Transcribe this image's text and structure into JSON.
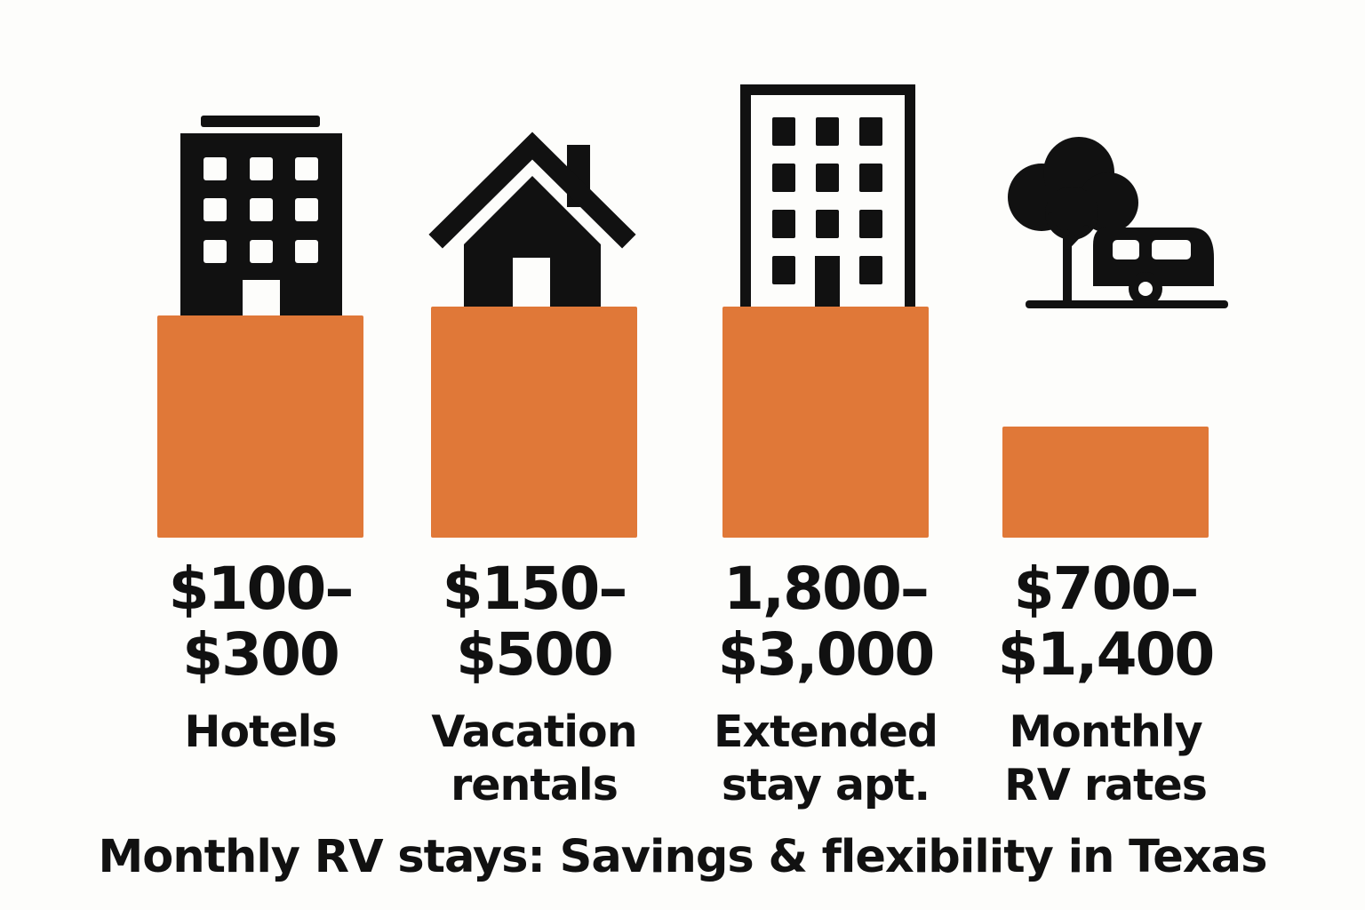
{
  "chart_data": {
    "type": "bar",
    "title": "Monthly RV stays: Savings & flexibility in Texas",
    "categories": [
      "Hotels",
      "Vacation\nrentals",
      "Extended\nstay apt.",
      "Monthly\nRV rates"
    ],
    "value_labels": [
      "$100–\n$300",
      "$150–\n$500",
      "1,800–\n$3,000",
      "$700–\n$1,400"
    ],
    "values": [
      250,
      260,
      260,
      125
    ],
    "ylim": [
      0,
      260
    ],
    "grid": false,
    "icons": [
      "hotel-building-icon",
      "house-icon",
      "apartment-building-icon",
      "rv-camper-tree-icon"
    ],
    "colors": {
      "bar": "#e07838",
      "icon": "#111111",
      "background": "#fdfdfb"
    }
  }
}
